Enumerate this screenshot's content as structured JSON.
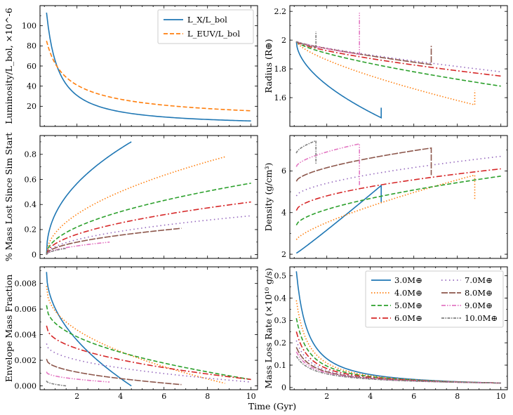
{
  "figure_xlabel": "Time (Gyr)",
  "series_colors": {
    "lx": "#1f77b4",
    "leuv": "#ff7f0e",
    "3.0": "#1f77b4",
    "4.0": "#ff7f0e",
    "5.0": "#2ca02c",
    "6.0": "#d62728",
    "7.0": "#9467bd",
    "8.0": "#8c564b",
    "9.0": "#e377c2",
    "10.0": "#7f7f7f"
  },
  "chart_data": [
    {
      "id": "lum",
      "type": "line",
      "title": "",
      "xlabel": "",
      "ylabel": "Luminosity/L_bol, ×10^-6",
      "xlim": [
        0.3,
        10.3
      ],
      "ylim": [
        0,
        120
      ],
      "xticks": [
        2,
        4,
        6,
        8,
        10
      ],
      "yticks": [
        20,
        40,
        60,
        80,
        100
      ],
      "legend": "top-right",
      "series": [
        {
          "name": "L_X/L_bol",
          "key": "lx",
          "dash": "solid",
          "kind": "powerlaw",
          "t0": 0.6,
          "t1": 10.0,
          "v0": 113,
          "v1": 5.4
        },
        {
          "name": "L_EUV/L_bol",
          "key": "leuv",
          "dash": "dashed",
          "kind": "powerlaw",
          "t0": 0.6,
          "t1": 10.0,
          "v0": 85,
          "v1": 15.5
        }
      ]
    },
    {
      "id": "radius",
      "type": "line",
      "xlabel": "",
      "ylabel": "Radius (R⊕)",
      "xlim": [
        0.3,
        10.3
      ],
      "ylim": [
        1.4,
        2.24
      ],
      "xticks": [
        2,
        4,
        6,
        8,
        10
      ],
      "yticks": [
        1.6,
        1.8,
        2.0,
        2.2
      ],
      "series": [
        {
          "name": "3.0M⊕",
          "key": "3.0",
          "kind": "radius",
          "t0": 0.6,
          "t1": 4.5,
          "v0": 1.99,
          "v1": 1.46,
          "p": 0.55,
          "jump": 1.53
        },
        {
          "name": "4.0M⊕",
          "key": "4.0",
          "kind": "radius",
          "t0": 0.6,
          "t1": 8.8,
          "v0": 1.99,
          "v1": 1.55,
          "p": 0.7,
          "jump": 1.65
        },
        {
          "name": "5.0M⊕",
          "key": "5.0",
          "kind": "radius",
          "t0": 0.6,
          "t1": 10.0,
          "v0": 1.99,
          "v1": 1.68,
          "p": 0.7
        },
        {
          "name": "6.0M⊕",
          "key": "6.0",
          "kind": "radius",
          "t0": 0.6,
          "t1": 10.0,
          "v0": 1.99,
          "v1": 1.75,
          "p": 0.7
        },
        {
          "name": "7.0M⊕",
          "key": "7.0",
          "kind": "radius",
          "t0": 0.6,
          "t1": 10.0,
          "v0": 1.99,
          "v1": 1.78,
          "p": 0.8
        },
        {
          "name": "8.0M⊕",
          "key": "8.0",
          "kind": "radius",
          "t0": 0.6,
          "t1": 6.8,
          "v0": 1.99,
          "v1": 1.83,
          "p": 0.8,
          "jump": 1.96
        },
        {
          "name": "9.0M⊕",
          "key": "9.0",
          "kind": "radius",
          "t0": 0.6,
          "t1": 3.5,
          "v0": 1.99,
          "v1": 1.9,
          "p": 0.8,
          "jump": 2.19
        },
        {
          "name": "10.0M⊕",
          "key": "10.0",
          "kind": "radius",
          "t0": 0.6,
          "t1": 1.5,
          "v0": 1.99,
          "v1": 1.95,
          "p": 0.8,
          "jump": 2.06
        }
      ]
    },
    {
      "id": "massloss",
      "type": "line",
      "xlabel": "",
      "ylabel": "% Mass Lost Since Sim Start",
      "xlim": [
        0.3,
        10.3
      ],
      "ylim": [
        -0.03,
        0.95
      ],
      "xticks": [
        2,
        4,
        6,
        8,
        10
      ],
      "yticks": [
        0.0,
        0.2,
        0.4,
        0.6,
        0.8
      ],
      "series": [
        {
          "name": "3.0M⊕",
          "key": "3.0",
          "kind": "rise",
          "t0": 0.6,
          "t1": 4.5,
          "v0": 0.0,
          "v1": 0.9,
          "p": 0.45
        },
        {
          "name": "4.0M⊕",
          "key": "4.0",
          "kind": "rise",
          "t0": 0.6,
          "t1": 8.8,
          "v0": 0.0,
          "v1": 0.78,
          "p": 0.5
        },
        {
          "name": "5.0M⊕",
          "key": "5.0",
          "kind": "rise",
          "t0": 0.6,
          "t1": 10.0,
          "v0": 0.0,
          "v1": 0.57,
          "p": 0.5
        },
        {
          "name": "6.0M⊕",
          "key": "6.0",
          "kind": "rise",
          "t0": 0.6,
          "t1": 10.0,
          "v0": 0.0,
          "v1": 0.42,
          "p": 0.5
        },
        {
          "name": "7.0M⊕",
          "key": "7.0",
          "kind": "rise",
          "t0": 0.6,
          "t1": 10.0,
          "v0": 0.0,
          "v1": 0.31,
          "p": 0.5
        },
        {
          "name": "8.0M⊕",
          "key": "8.0",
          "kind": "rise",
          "t0": 0.6,
          "t1": 6.8,
          "v0": 0.0,
          "v1": 0.21,
          "p": 0.5
        },
        {
          "name": "9.0M⊕",
          "key": "9.0",
          "kind": "rise",
          "t0": 0.6,
          "t1": 3.5,
          "v0": 0.0,
          "v1": 0.1,
          "p": 0.5
        },
        {
          "name": "10.0M⊕",
          "key": "10.0",
          "kind": "rise",
          "t0": 0.6,
          "t1": 1.5,
          "v0": 0.0,
          "v1": 0.05,
          "p": 0.5
        }
      ]
    },
    {
      "id": "density",
      "type": "line",
      "xlabel": "",
      "ylabel": "Density (g/cm³)",
      "xlim": [
        0.3,
        10.3
      ],
      "ylim": [
        1.8,
        7.7
      ],
      "xticks": [
        2,
        4,
        6,
        8,
        10
      ],
      "yticks": [
        2,
        4,
        6
      ],
      "series": [
        {
          "name": "3.0M⊕",
          "key": "3.0",
          "kind": "rise",
          "t0": 0.6,
          "t1": 4.5,
          "v0": 2.05,
          "v1": 5.3,
          "p": 1.05,
          "jump": 4.5
        },
        {
          "name": "4.0M⊕",
          "key": "4.0",
          "kind": "rise",
          "t0": 0.6,
          "t1": 8.8,
          "v0": 2.7,
          "v1": 5.8,
          "p": 0.75,
          "jump": 4.6
        },
        {
          "name": "5.0M⊕",
          "key": "5.0",
          "kind": "rise",
          "t0": 0.6,
          "t1": 10.0,
          "v0": 3.4,
          "v1": 5.75,
          "p": 0.6
        },
        {
          "name": "6.0M⊕",
          "key": "6.0",
          "kind": "rise",
          "t0": 0.6,
          "t1": 10.0,
          "v0": 4.1,
          "v1": 6.1,
          "p": 0.55
        },
        {
          "name": "7.0M⊕",
          "key": "7.0",
          "kind": "rise",
          "t0": 0.6,
          "t1": 10.0,
          "v0": 4.8,
          "v1": 6.7,
          "p": 0.6
        },
        {
          "name": "8.0M⊕",
          "key": "8.0",
          "kind": "rise",
          "t0": 0.6,
          "t1": 6.8,
          "v0": 5.5,
          "v1": 7.1,
          "p": 0.6,
          "jump": 5.8
        },
        {
          "name": "9.0M⊕",
          "key": "9.0",
          "kind": "rise",
          "t0": 0.6,
          "t1": 3.5,
          "v0": 6.2,
          "v1": 7.3,
          "p": 0.6,
          "jump": 5.3
        },
        {
          "name": "10.0M⊕",
          "key": "10.0",
          "kind": "rise",
          "t0": 0.6,
          "t1": 1.5,
          "v0": 6.85,
          "v1": 7.45,
          "p": 0.6,
          "jump": 6.3
        }
      ]
    },
    {
      "id": "envelope",
      "type": "line",
      "xlabel": "",
      "ylabel": "Envelope Mass Fraction",
      "xlim": [
        0.3,
        10.3
      ],
      "ylim": [
        -0.0003,
        0.0093
      ],
      "xticks": [
        2,
        4,
        6,
        8,
        10
      ],
      "yticks": [
        0.0,
        0.002,
        0.004,
        0.006,
        0.008
      ],
      "ytick_labels": [
        "0.000",
        "0.002",
        "0.004",
        "0.006",
        "0.008"
      ],
      "series": [
        {
          "name": "3.0M⊕",
          "key": "3.0",
          "kind": "fall",
          "t0": 0.6,
          "t1": 4.5,
          "v0": 0.0089,
          "v1": 0.0,
          "p": 0.5
        },
        {
          "name": "4.0M⊕",
          "key": "4.0",
          "kind": "fall",
          "t0": 0.6,
          "t1": 8.8,
          "v0": 0.0078,
          "v1": 0.0002,
          "p": 0.45
        },
        {
          "name": "5.0M⊕",
          "key": "5.0",
          "kind": "fall",
          "t0": 0.6,
          "t1": 10.0,
          "v0": 0.0063,
          "v1": 0.0005,
          "p": 0.45
        },
        {
          "name": "6.0M⊕",
          "key": "6.0",
          "kind": "fall",
          "t0": 0.6,
          "t1": 10.0,
          "v0": 0.0047,
          "v1": 0.0005,
          "p": 0.45
        },
        {
          "name": "7.0M⊕",
          "key": "7.0",
          "kind": "fall",
          "t0": 0.6,
          "t1": 10.0,
          "v0": 0.0033,
          "v1": 0.0003,
          "p": 0.45
        },
        {
          "name": "8.0M⊕",
          "key": "8.0",
          "kind": "fall",
          "t0": 0.6,
          "t1": 6.8,
          "v0": 0.0021,
          "v1": 0.0001,
          "p": 0.45
        },
        {
          "name": "9.0M⊕",
          "key": "9.0",
          "kind": "fall",
          "t0": 0.6,
          "t1": 3.5,
          "v0": 0.0011,
          "v1": 0.0003,
          "p": 0.45
        },
        {
          "name": "10.0M⊕",
          "key": "10.0",
          "kind": "fall",
          "t0": 0.6,
          "t1": 1.5,
          "v0": 0.0004,
          "v1": 0.0,
          "p": 0.45
        }
      ]
    },
    {
      "id": "rate",
      "type": "line",
      "xlabel": "",
      "ylabel": "Mass Loss Rate (×10¹⁰ g/s)",
      "xlim": [
        0.3,
        10.3
      ],
      "ylim": [
        -0.01,
        0.54
      ],
      "xticks": [
        2,
        4,
        6,
        8,
        10
      ],
      "yticks": [
        0.0,
        0.1,
        0.2,
        0.3,
        0.4,
        0.5
      ],
      "legend": "top-right",
      "series": [
        {
          "name": "3.0M⊕",
          "key": "3.0",
          "kind": "powerlaw",
          "t0": 0.6,
          "t1": 10.0,
          "v0": 0.52,
          "v1": 0.02
        },
        {
          "name": "4.0M⊕",
          "key": "4.0",
          "kind": "powerlaw",
          "t0": 0.6,
          "t1": 10.0,
          "v0": 0.39,
          "v1": 0.02
        },
        {
          "name": "5.0M⊕",
          "key": "5.0",
          "kind": "powerlaw",
          "t0": 0.6,
          "t1": 10.0,
          "v0": 0.31,
          "v1": 0.02
        },
        {
          "name": "6.0M⊕",
          "key": "6.0",
          "kind": "powerlaw",
          "t0": 0.6,
          "t1": 10.0,
          "v0": 0.25,
          "v1": 0.02
        },
        {
          "name": "7.0M⊕",
          "key": "7.0",
          "kind": "powerlaw",
          "t0": 0.6,
          "t1": 10.0,
          "v0": 0.21,
          "v1": 0.02
        },
        {
          "name": "8.0M⊕",
          "key": "8.0",
          "kind": "powerlaw",
          "t0": 0.6,
          "t1": 10.0,
          "v0": 0.18,
          "v1": 0.02
        },
        {
          "name": "9.0M⊕",
          "key": "9.0",
          "kind": "powerlaw",
          "t0": 0.6,
          "t1": 10.0,
          "v0": 0.16,
          "v1": 0.02
        },
        {
          "name": "10.0M⊕",
          "key": "10.0",
          "kind": "powerlaw",
          "t0": 0.6,
          "t1": 10.0,
          "v0": 0.14,
          "v1": 0.02
        }
      ]
    }
  ]
}
